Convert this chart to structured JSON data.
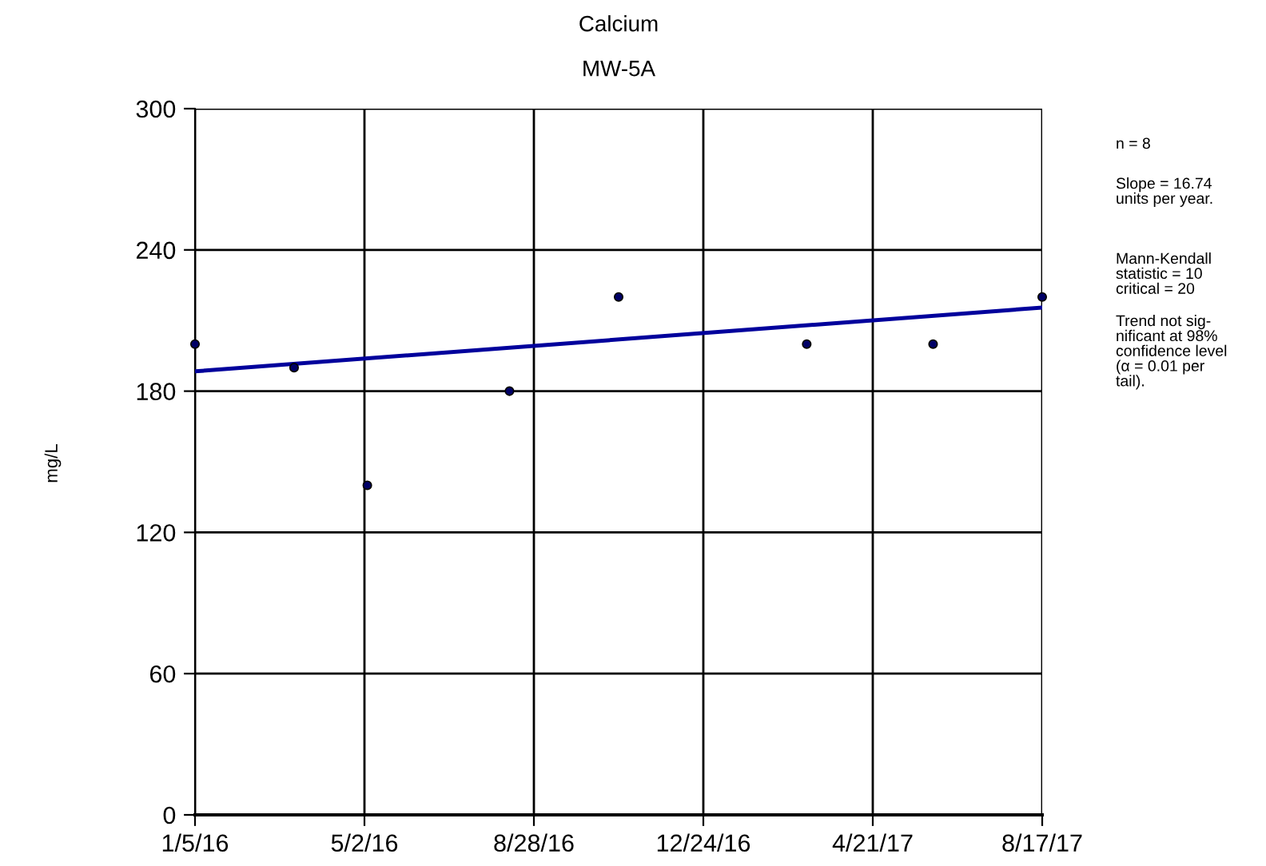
{
  "chart_data": {
    "type": "scatter",
    "title": "Calcium",
    "subtitle": "MW-5A",
    "ylabel": "mg/L",
    "series": [
      {
        "color": "#000066",
        "marker": "circle",
        "x": [
          "2016-01-05",
          "2016-03-14",
          "2016-05-04",
          "2016-08-11",
          "2016-10-26",
          "2017-03-06",
          "2017-06-02",
          "2017-08-17"
        ],
        "values": [
          200,
          190,
          140,
          180,
          220,
          200,
          200,
          220
        ]
      },
      {
        "type": "line",
        "color": "#00009c",
        "x": [
          "2016-01-05",
          "2017-08-17"
        ],
        "values": [
          188.4,
          215.5
        ]
      }
    ],
    "xlim": [
      "2016-01-05",
      "2017-08-17"
    ],
    "xticks": [
      {
        "value": "2016-01-05",
        "label": "1/5/16"
      },
      {
        "value": "2016-05-02",
        "label": "5/2/16"
      },
      {
        "value": "2016-08-28",
        "label": "8/28/16"
      },
      {
        "value": "2016-12-24",
        "label": "12/24/16"
      },
      {
        "value": "2017-04-21",
        "label": "4/21/17"
      },
      {
        "value": "2017-08-17",
        "label": "8/17/17"
      }
    ],
    "ylim": [
      0,
      300
    ],
    "yticks": [
      0,
      60,
      120,
      180,
      240,
      300
    ],
    "grid": true,
    "annotations": [
      "n = 8",
      "Slope = 16.74\nunits per year.",
      "Mann-Kendall\nstatistic = 10\ncritical = 20",
      "Trend not sig-\nnificant at 98%\nconfidence level\n(α = 0.01 per\ntail)."
    ]
  }
}
